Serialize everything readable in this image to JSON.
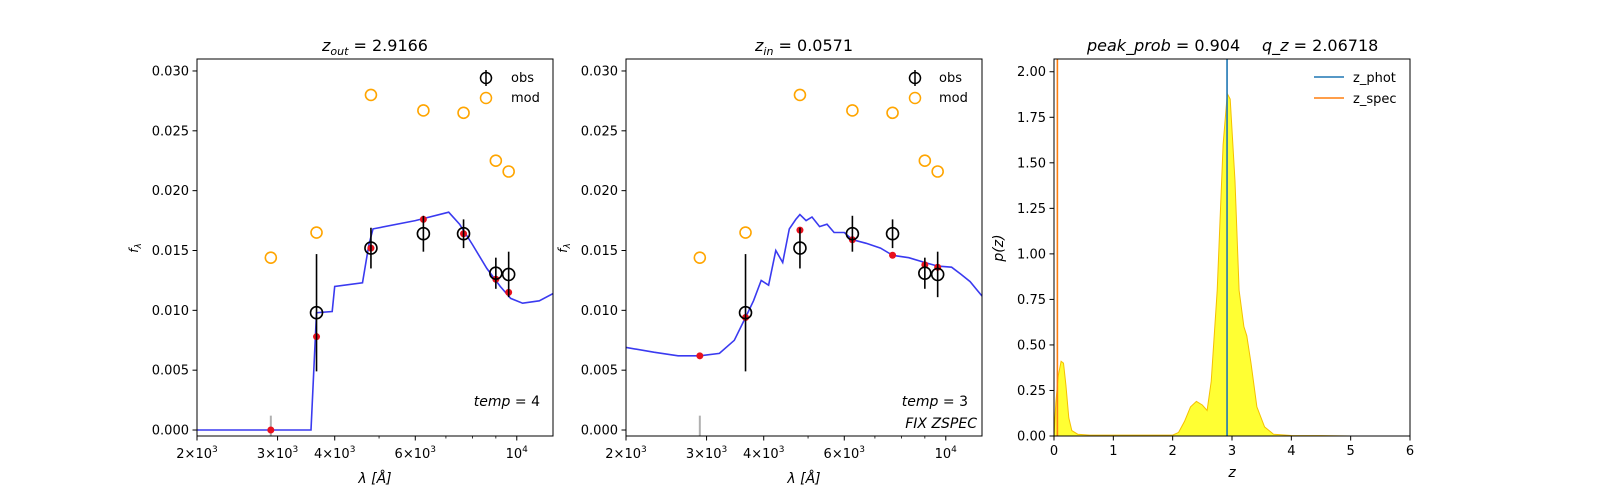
{
  "chart_data": [
    {
      "type": "scatter",
      "title_var": "z",
      "title_sub": "out",
      "title_value": "2.9166",
      "xlabel_text": "λ [",
      "xlabel_unit": "Å",
      "xlabel_close": "]",
      "ylabel": "f",
      "ylabel_sub": "λ",
      "xscale": "log",
      "xlim": [
        2000,
        12000
      ],
      "ylim": [
        -0.0005,
        0.031
      ],
      "xticks": [
        {
          "value": 2000,
          "mant": "2",
          "exp": "3"
        },
        {
          "value": 3000,
          "mant": "3",
          "exp": "3"
        },
        {
          "value": 4000,
          "mant": "4",
          "exp": "3"
        },
        {
          "value": 6000,
          "mant": "6",
          "exp": "3"
        },
        {
          "value": 10000,
          "mant": "",
          "exp": "4"
        }
      ],
      "yticks": [
        0.0,
        0.005,
        0.01,
        0.015,
        0.02,
        0.025,
        0.03
      ],
      "ytick_labels": [
        "0.000",
        "0.005",
        "0.010",
        "0.015",
        "0.020",
        "0.025",
        "0.030"
      ],
      "obs": [
        {
          "x": 3650,
          "y": 0.0098,
          "err": 0.0049
        },
        {
          "x": 4800,
          "y": 0.0152,
          "err": 0.0017
        },
        {
          "x": 6250,
          "y": 0.0164,
          "err": 0.0015
        },
        {
          "x": 7650,
          "y": 0.0164,
          "err": 0.0012
        },
        {
          "x": 9000,
          "y": 0.0131,
          "err": 0.0013
        },
        {
          "x": 9600,
          "y": 0.013,
          "err": 0.0019
        }
      ],
      "mod": [
        {
          "x": 2900,
          "y": 0.0144
        },
        {
          "x": 3650,
          "y": 0.0165
        },
        {
          "x": 4800,
          "y": 0.028
        },
        {
          "x": 6250,
          "y": 0.0267
        },
        {
          "x": 7650,
          "y": 0.0265
        },
        {
          "x": 9000,
          "y": 0.0225
        },
        {
          "x": 9600,
          "y": 0.0216
        }
      ],
      "red_points": [
        {
          "x": 2900,
          "y": 0.0
        },
        {
          "x": 3650,
          "y": 0.0078
        },
        {
          "x": 4800,
          "y": 0.0152
        },
        {
          "x": 6250,
          "y": 0.0176
        },
        {
          "x": 7650,
          "y": 0.0164
        },
        {
          "x": 9000,
          "y": 0.0126
        },
        {
          "x": 9600,
          "y": 0.0115
        }
      ],
      "sed": [
        [
          2000,
          0.0
        ],
        [
          3550,
          0.0
        ],
        [
          3650,
          0.0098
        ],
        [
          3950,
          0.0099
        ],
        [
          4000,
          0.012
        ],
        [
          4600,
          0.0123
        ],
        [
          4750,
          0.0155
        ],
        [
          4850,
          0.0168
        ],
        [
          6000,
          0.0175
        ],
        [
          7100,
          0.0182
        ],
        [
          7500,
          0.0172
        ],
        [
          8000,
          0.0155
        ],
        [
          8600,
          0.0135
        ],
        [
          9200,
          0.012
        ],
        [
          9700,
          0.011
        ],
        [
          10300,
          0.0106
        ],
        [
          11200,
          0.0108
        ],
        [
          12000,
          0.0114
        ]
      ],
      "gray_marker_x": 2900,
      "legend": [
        {
          "label": "obs"
        },
        {
          "label": "mod"
        }
      ],
      "annotations": [
        {
          "var": "temp",
          "value": "4"
        }
      ]
    },
    {
      "type": "scatter",
      "title_var": "z",
      "title_sub": "in",
      "title_value": "0.0571",
      "xlabel_text": "λ [",
      "xlabel_unit": "Å",
      "xlabel_close": "]",
      "ylabel": "f",
      "ylabel_sub": "λ",
      "xscale": "log",
      "xlim": [
        2000,
        12000
      ],
      "ylim": [
        -0.0005,
        0.031
      ],
      "xticks": [
        {
          "value": 2000,
          "mant": "2",
          "exp": "3"
        },
        {
          "value": 3000,
          "mant": "3",
          "exp": "3"
        },
        {
          "value": 4000,
          "mant": "4",
          "exp": "3"
        },
        {
          "value": 6000,
          "mant": "6",
          "exp": "3"
        },
        {
          "value": 10000,
          "mant": "",
          "exp": "4"
        }
      ],
      "yticks": [
        0.0,
        0.005,
        0.01,
        0.015,
        0.02,
        0.025,
        0.03
      ],
      "ytick_labels": [
        "0.000",
        "0.005",
        "0.010",
        "0.015",
        "0.020",
        "0.025",
        "0.030"
      ],
      "obs": [
        {
          "x": 3650,
          "y": 0.0098,
          "err": 0.0049
        },
        {
          "x": 4800,
          "y": 0.0152,
          "err": 0.0017
        },
        {
          "x": 6250,
          "y": 0.0164,
          "err": 0.0015
        },
        {
          "x": 7650,
          "y": 0.0164,
          "err": 0.0012
        },
        {
          "x": 9000,
          "y": 0.0131,
          "err": 0.0013
        },
        {
          "x": 9600,
          "y": 0.013,
          "err": 0.0019
        }
      ],
      "mod": [
        {
          "x": 2900,
          "y": 0.0144
        },
        {
          "x": 3650,
          "y": 0.0165
        },
        {
          "x": 4800,
          "y": 0.028
        },
        {
          "x": 6250,
          "y": 0.0267
        },
        {
          "x": 7650,
          "y": 0.0265
        },
        {
          "x": 9000,
          "y": 0.0225
        },
        {
          "x": 9600,
          "y": 0.0216
        }
      ],
      "red_points": [
        {
          "x": 2900,
          "y": 0.0062
        },
        {
          "x": 3650,
          "y": 0.0094
        },
        {
          "x": 4800,
          "y": 0.0167
        },
        {
          "x": 6250,
          "y": 0.0159
        },
        {
          "x": 7650,
          "y": 0.0146
        },
        {
          "x": 9000,
          "y": 0.0138
        },
        {
          "x": 9600,
          "y": 0.0136
        }
      ],
      "sed": [
        [
          2000,
          0.0069
        ],
        [
          2300,
          0.0065
        ],
        [
          2600,
          0.0062
        ],
        [
          2900,
          0.0062
        ],
        [
          3200,
          0.0064
        ],
        [
          3450,
          0.0075
        ],
        [
          3650,
          0.0094
        ],
        [
          3800,
          0.0108
        ],
        [
          3950,
          0.0125
        ],
        [
          4100,
          0.0121
        ],
        [
          4250,
          0.015
        ],
        [
          4400,
          0.014
        ],
        [
          4550,
          0.0168
        ],
        [
          4700,
          0.0176
        ],
        [
          4800,
          0.018
        ],
        [
          4950,
          0.0175
        ],
        [
          5100,
          0.0178
        ],
        [
          5300,
          0.017
        ],
        [
          5500,
          0.0172
        ],
        [
          5700,
          0.0165
        ],
        [
          6000,
          0.0165
        ],
        [
          6250,
          0.0159
        ],
        [
          6700,
          0.0156
        ],
        [
          7200,
          0.0152
        ],
        [
          7650,
          0.0146
        ],
        [
          8300,
          0.0144
        ],
        [
          9000,
          0.014
        ],
        [
          9600,
          0.0137
        ],
        [
          10300,
          0.0136
        ],
        [
          10800,
          0.013
        ],
        [
          11300,
          0.0124
        ],
        [
          11700,
          0.0117
        ],
        [
          12000,
          0.0112
        ]
      ],
      "gray_marker_x": 2900,
      "legend": [
        {
          "label": "obs"
        },
        {
          "label": "mod"
        }
      ],
      "annotations": [
        {
          "var": "temp",
          "value": "3"
        },
        {
          "text": "FIX ZSPEC"
        }
      ]
    },
    {
      "type": "area",
      "title_left_var": "peak_prob",
      "title_left_value": "0.904",
      "title_right_var": "q_z",
      "title_right_value": "2.06718",
      "xlabel": "z",
      "ylabel": "p(z)",
      "xlim": [
        0,
        6
      ],
      "ylim": [
        0,
        2.07
      ],
      "xticks": [
        0,
        1,
        2,
        3,
        4,
        5,
        6
      ],
      "yticks": [
        0.0,
        0.25,
        0.5,
        0.75,
        1.0,
        1.25,
        1.5,
        1.75,
        2.0
      ],
      "ytick_labels": [
        "0.00",
        "0.25",
        "0.50",
        "0.75",
        "1.00",
        "1.25",
        "1.50",
        "1.75",
        "2.00"
      ],
      "pz": [
        [
          0.0,
          0.0
        ],
        [
          0.03,
          0.18
        ],
        [
          0.07,
          0.33
        ],
        [
          0.12,
          0.41
        ],
        [
          0.16,
          0.4
        ],
        [
          0.2,
          0.28
        ],
        [
          0.25,
          0.1
        ],
        [
          0.3,
          0.03
        ],
        [
          0.4,
          0.01
        ],
        [
          0.6,
          0.005
        ],
        [
          1.0,
          0.005
        ],
        [
          1.6,
          0.005
        ],
        [
          2.0,
          0.005
        ],
        [
          2.1,
          0.02
        ],
        [
          2.2,
          0.08
        ],
        [
          2.3,
          0.16
        ],
        [
          2.4,
          0.19
        ],
        [
          2.5,
          0.17
        ],
        [
          2.58,
          0.14
        ],
        [
          2.65,
          0.3
        ],
        [
          2.75,
          0.8
        ],
        [
          2.85,
          1.6
        ],
        [
          2.92,
          1.88
        ],
        [
          2.97,
          1.85
        ],
        [
          3.05,
          1.4
        ],
        [
          3.12,
          0.8
        ],
        [
          3.2,
          0.6
        ],
        [
          3.25,
          0.55
        ],
        [
          3.32,
          0.4
        ],
        [
          3.42,
          0.16
        ],
        [
          3.55,
          0.05
        ],
        [
          3.7,
          0.01
        ],
        [
          4.0,
          0.003
        ],
        [
          4.5,
          0.002
        ],
        [
          5.0,
          0.0
        ]
      ],
      "z_phot": 2.9166,
      "z_spec": 0.0571,
      "colors": {
        "z_phot": "#1f77b4",
        "z_spec": "#ff7f0e",
        "fill": "#ffff33",
        "fill_edge": "#f5c000"
      },
      "legend": [
        {
          "label": "z_phot"
        },
        {
          "label": "z_spec"
        }
      ]
    }
  ],
  "colors": {
    "sed": "#3a3af0",
    "red": "#e8111d",
    "mod": "#ffa500",
    "obs": "#000000",
    "gray": "#b0b0b0"
  }
}
